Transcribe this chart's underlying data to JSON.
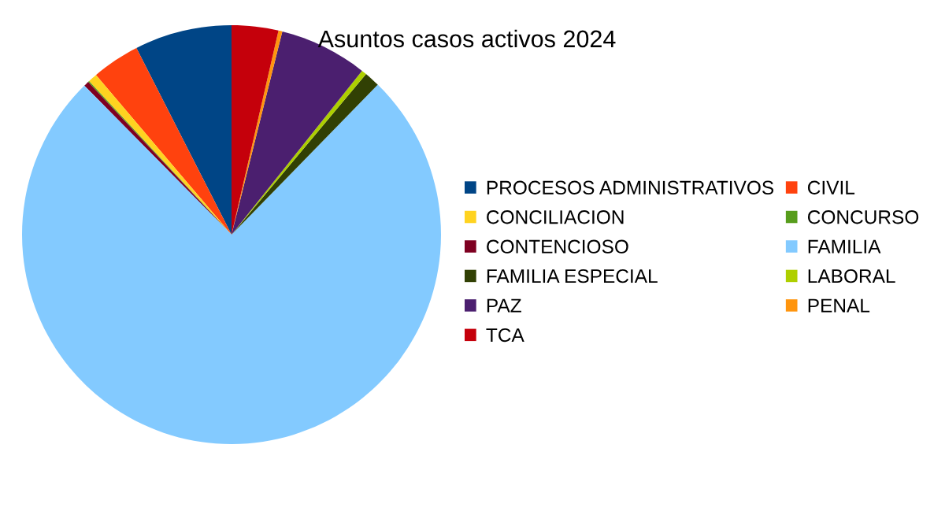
{
  "chart_data": {
    "type": "pie",
    "title": "Asuntos casos activos 2024",
    "categories": [
      "PROCESOS ADMINISTRATIVOS",
      "CIVIL",
      "CONCILIACION",
      "CONCURSO",
      "CONTENCIOSO",
      "FAMILIA",
      "FAMILIA ESPECIAL",
      "LABORAL",
      "PAZ",
      "PENAL",
      "TCA"
    ],
    "values": [
      7.5,
      3.7,
      0.7,
      0.1,
      0.4,
      75.3,
      1.2,
      0.4,
      6.8,
      0.3,
      3.6
    ],
    "colors": [
      "#004586",
      "#ff420e",
      "#ffd320",
      "#579d1c",
      "#7e0021",
      "#83caff",
      "#314004",
      "#aecf00",
      "#4b1f6f",
      "#ff950e",
      "#c5000b"
    ],
    "legend": "right"
  }
}
